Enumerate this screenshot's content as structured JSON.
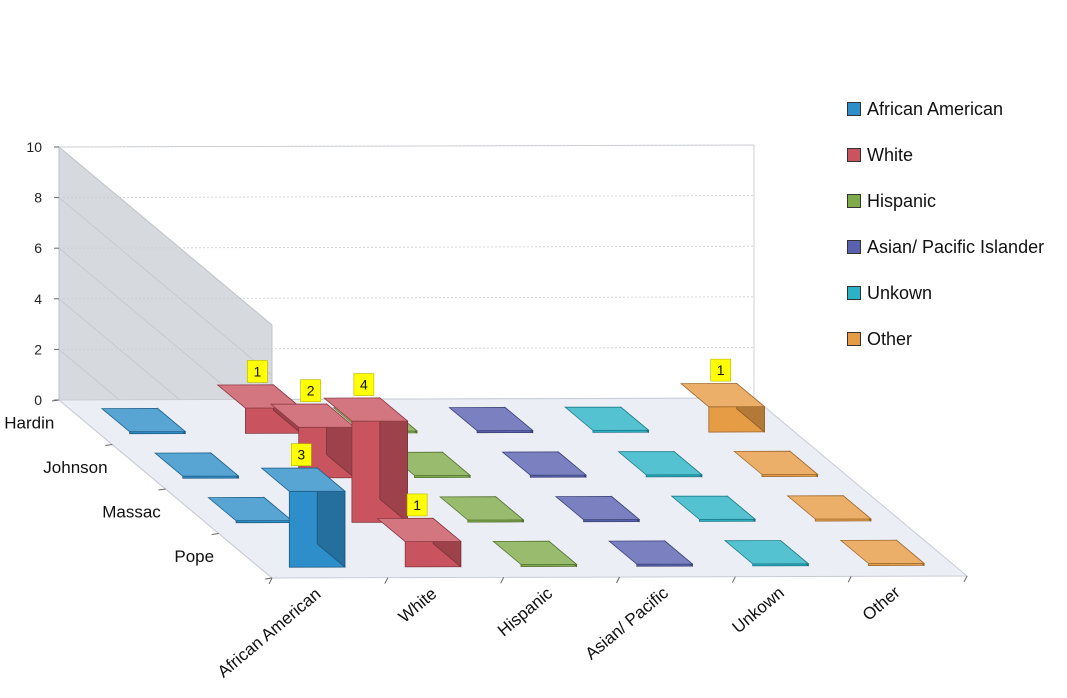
{
  "chart_data": {
    "type": "bar",
    "subtype": "3d-column",
    "title": "",
    "z_categories": [
      "Hardin",
      "Johnson",
      "Massac",
      "Pope"
    ],
    "x_categories": [
      "African American",
      "White",
      "Hispanic",
      "Asian/ Pacific",
      "Unkown",
      "Other"
    ],
    "ylim": [
      0,
      10
    ],
    "yticks": [
      "0",
      "2",
      "4",
      "6",
      "8",
      "10"
    ],
    "legend_position": "right",
    "series": [
      {
        "name": "African American",
        "color": "#2e8ec9",
        "values": [
          0,
          0,
          0,
          3
        ],
        "labels": [
          "",
          "",
          "",
          "3"
        ]
      },
      {
        "name": "White",
        "color": "#c9545f",
        "values": [
          1,
          2,
          4,
          1
        ],
        "labels": [
          "1",
          "2",
          "4",
          "1"
        ]
      },
      {
        "name": "Hispanic",
        "color": "#7faa4a",
        "values": [
          0,
          0,
          0,
          0
        ],
        "labels": [
          "",
          "",
          "",
          ""
        ]
      },
      {
        "name": "Asian/ Pacific Islander",
        "color": "#5a62b0",
        "values": [
          0,
          0,
          0,
          0
        ],
        "labels": [
          "",
          "",
          "",
          ""
        ]
      },
      {
        "name": "Unkown",
        "color": "#2ab3c6",
        "values": [
          0,
          0,
          0,
          0
        ],
        "labels": [
          "",
          "",
          "",
          ""
        ]
      },
      {
        "name": "Other",
        "color": "#e69b45",
        "values": [
          1,
          0,
          0,
          0
        ],
        "labels": [
          "1",
          "",
          "",
          ""
        ]
      }
    ]
  },
  "legend": {
    "items": [
      {
        "label": "African American",
        "color": "#2e8ec9"
      },
      {
        "label": "White",
        "color": "#c9545f"
      },
      {
        "label": "Hispanic",
        "color": "#7faa4a"
      },
      {
        "label": "Asian/ Pacific Islander",
        "color": "#5a62b0"
      },
      {
        "label": "Unkown",
        "color": "#2ab3c6"
      },
      {
        "label": "Other",
        "color": "#e69b45"
      }
    ]
  }
}
